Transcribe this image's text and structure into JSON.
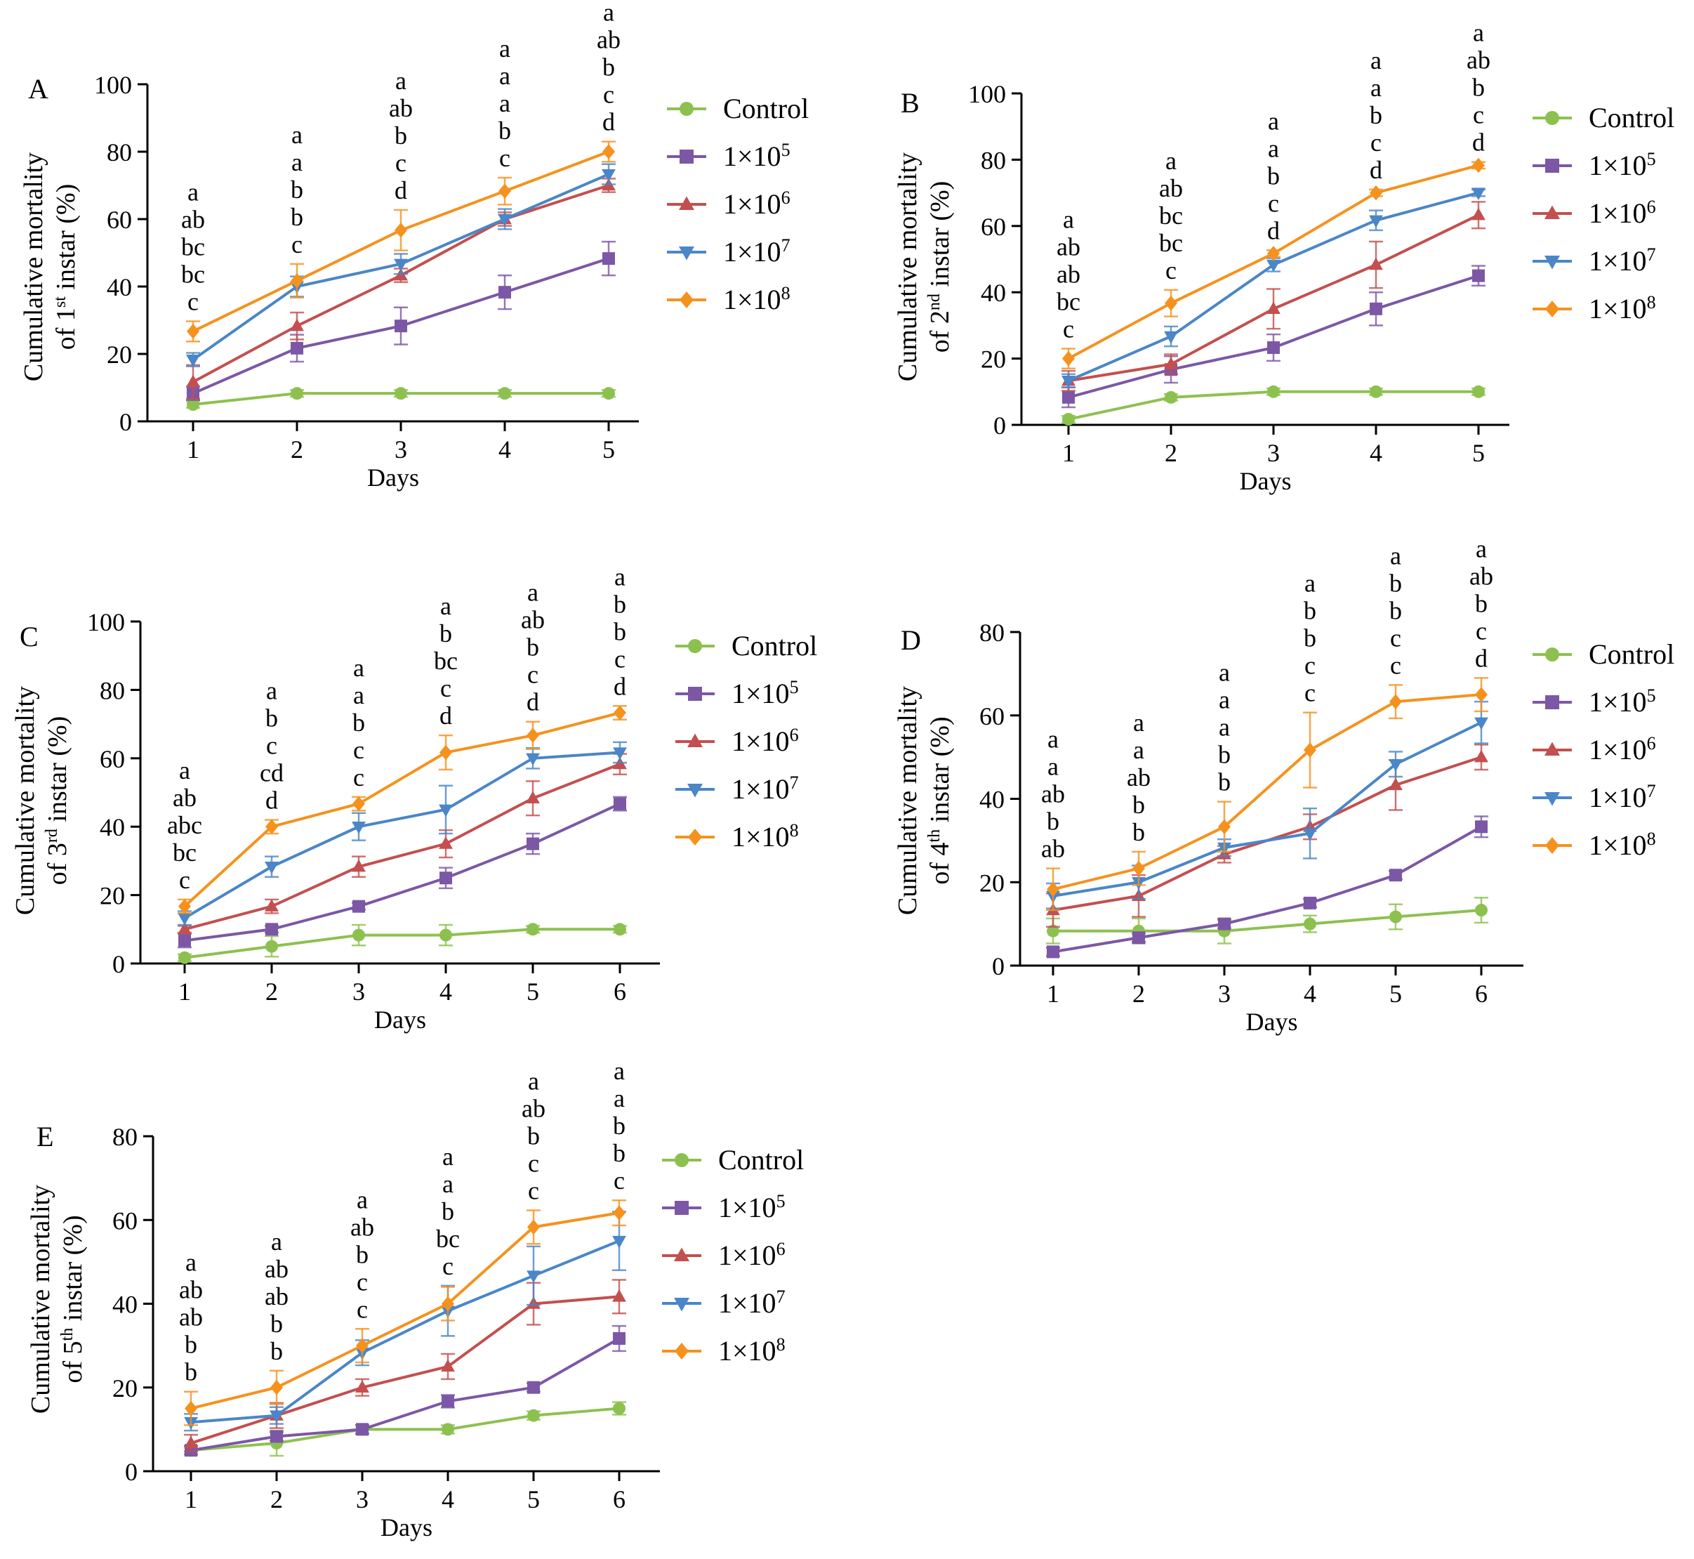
{
  "figure": {
    "x_label": "Days",
    "legend": [
      {
        "name": "Control",
        "sup": "",
        "marker": "circle",
        "color": "#8DC14F"
      },
      {
        "name": "1×10",
        "sup": "5",
        "marker": "square",
        "color": "#7C57A6"
      },
      {
        "name": "1×10",
        "sup": "6",
        "marker": "triangle-up",
        "color": "#C44F4F"
      },
      {
        "name": "1×10",
        "sup": "7",
        "marker": "triangle-down",
        "color": "#4A86C8"
      },
      {
        "name": "1×10",
        "sup": "8",
        "marker": "diamond",
        "color": "#F5921E"
      }
    ]
  },
  "chart_data": [
    {
      "panel": "A",
      "type": "line",
      "title": "",
      "ylabel_pre": "of 1",
      "ylabel_sup": "st",
      "ylabel_post": " instar (%)",
      "ylabel_top": "Cumulative mortality",
      "xlabel": "Days",
      "x": [
        1,
        2,
        3,
        4,
        5
      ],
      "ylim": [
        0,
        100
      ],
      "yticks": [
        0,
        20,
        40,
        60,
        80,
        100
      ],
      "series": [
        {
          "name": "Control",
          "values": [
            5,
            8.3,
            8.3,
            8.3,
            8.3
          ],
          "errors": [
            1,
            1,
            1,
            1,
            1
          ]
        },
        {
          "name": "1×10^5",
          "values": [
            8.3,
            21.7,
            28.3,
            38.3,
            48.3
          ],
          "errors": [
            2,
            4,
            5.5,
            5,
            5
          ]
        },
        {
          "name": "1×10^6",
          "values": [
            11.7,
            28.3,
            43.3,
            60,
            70
          ],
          "errors": [
            5,
            4,
            2,
            2,
            2
          ]
        },
        {
          "name": "1×10^7",
          "values": [
            18.3,
            40,
            46.7,
            60,
            73.3
          ],
          "errors": [
            2,
            3,
            3,
            3,
            3
          ]
        },
        {
          "name": "1×10^8",
          "values": [
            26.7,
            41.7,
            56.7,
            68.3,
            80
          ],
          "errors": [
            3,
            5,
            6,
            4,
            3
          ]
        }
      ],
      "annotations": [
        [
          "a",
          "ab",
          "bc",
          "bc",
          "c"
        ],
        [
          "a",
          "a",
          "b",
          "b",
          "c"
        ],
        [
          "a",
          "ab",
          "b",
          "c",
          "d"
        ],
        [
          "a",
          "a",
          "a",
          "b",
          "c"
        ],
        [
          "a",
          "ab",
          "b",
          "c",
          "d"
        ]
      ]
    },
    {
      "panel": "B",
      "type": "line",
      "title": "",
      "ylabel_pre": "of 2",
      "ylabel_sup": "nd",
      "ylabel_post": " instar (%)",
      "ylabel_top": "Cumulative mortality",
      "xlabel": "Days",
      "x": [
        1,
        2,
        3,
        4,
        5
      ],
      "ylim": [
        0,
        100
      ],
      "yticks": [
        0,
        20,
        40,
        60,
        80,
        100
      ],
      "series": [
        {
          "name": "Control",
          "values": [
            1.7,
            8.3,
            10,
            10,
            10
          ],
          "errors": [
            1,
            1,
            1,
            1,
            1
          ]
        },
        {
          "name": "1×10^5",
          "values": [
            8.3,
            16.7,
            23.3,
            35,
            45
          ],
          "errors": [
            3,
            4,
            4,
            5,
            3
          ]
        },
        {
          "name": "1×10^6",
          "values": [
            13.3,
            18.3,
            35,
            48.3,
            63.3
          ],
          "errors": [
            3,
            3,
            6,
            7,
            4
          ]
        },
        {
          "name": "1×10^7",
          "values": [
            13.3,
            26.7,
            48.3,
            61.7,
            70
          ],
          "errors": [
            2,
            3,
            2,
            3,
            1
          ]
        },
        {
          "name": "1×10^8",
          "values": [
            20,
            36.7,
            51.7,
            70,
            78.3
          ],
          "errors": [
            3,
            4,
            1,
            1,
            1
          ]
        }
      ],
      "annotations": [
        [
          "a",
          "ab",
          "ab",
          "bc",
          "c"
        ],
        [
          "a",
          "ab",
          "bc",
          "bc",
          "c"
        ],
        [
          "a",
          "a",
          "b",
          "c",
          "d"
        ],
        [
          "a",
          "a",
          "b",
          "c",
          "d"
        ],
        [
          "a",
          "ab",
          "b",
          "c",
          "d"
        ]
      ]
    },
    {
      "panel": "C",
      "type": "line",
      "title": "",
      "ylabel_pre": "of 3",
      "ylabel_sup": "rd",
      "ylabel_post": " instar (%)",
      "ylabel_top": "Cumulative mortality",
      "xlabel": "Days",
      "x": [
        1,
        2,
        3,
        4,
        5,
        6
      ],
      "ylim": [
        0,
        100
      ],
      "yticks": [
        0,
        20,
        40,
        60,
        80,
        100
      ],
      "series": [
        {
          "name": "Control",
          "values": [
            1.7,
            5,
            8.3,
            8.3,
            10,
            10
          ],
          "errors": [
            1,
            3,
            3,
            3,
            1,
            1
          ]
        },
        {
          "name": "1×10^5",
          "values": [
            6.7,
            10,
            16.7,
            25,
            35,
            46.7
          ],
          "errors": [
            2,
            1,
            1,
            3,
            3,
            2
          ]
        },
        {
          "name": "1×10^6",
          "values": [
            10,
            16.7,
            28.3,
            35,
            48.3,
            58.3
          ],
          "errors": [
            1,
            2,
            3,
            4,
            5,
            3
          ]
        },
        {
          "name": "1×10^7",
          "values": [
            13.3,
            28.3,
            40,
            45,
            60,
            61.7
          ],
          "errors": [
            2,
            3,
            4,
            7,
            3,
            3
          ]
        },
        {
          "name": "1×10^8",
          "values": [
            16.7,
            40,
            46.7,
            61.7,
            66.7,
            73.3
          ],
          "errors": [
            2,
            2,
            2,
            5,
            4,
            2
          ]
        }
      ],
      "annotations": [
        [
          "a",
          "ab",
          "abc",
          "bc",
          "c"
        ],
        [
          "a",
          "b",
          "c",
          "cd",
          "d"
        ],
        [
          "a",
          "a",
          "b",
          "c",
          "c"
        ],
        [
          "a",
          "b",
          "bc",
          "c",
          "d"
        ],
        [
          "a",
          "ab",
          "b",
          "c",
          "d"
        ],
        [
          "a",
          "b",
          "b",
          "c",
          "d"
        ]
      ]
    },
    {
      "panel": "D",
      "type": "line",
      "title": "",
      "ylabel_pre": "of 4",
      "ylabel_sup": "th",
      "ylabel_post": " instar (%)",
      "ylabel_top": "Cumulative mortality",
      "xlabel": "Days",
      "x": [
        1,
        2,
        3,
        4,
        5,
        6
      ],
      "ylim": [
        0,
        80
      ],
      "yticks": [
        0,
        20,
        40,
        60,
        80
      ],
      "series": [
        {
          "name": "Control",
          "values": [
            8.3,
            8.3,
            8.3,
            10,
            11.7,
            13.3
          ],
          "errors": [
            3,
            3,
            3,
            2,
            3,
            3
          ]
        },
        {
          "name": "1×10^5",
          "values": [
            3.3,
            6.7,
            10,
            15,
            21.7,
            33.3
          ],
          "errors": [
            1,
            1,
            1,
            1,
            1,
            2.5
          ]
        },
        {
          "name": "1×10^6",
          "values": [
            13.3,
            16.7,
            26.7,
            33.3,
            43.3,
            50
          ],
          "errors": [
            4,
            5,
            2,
            3,
            6,
            3
          ]
        },
        {
          "name": "1×10^7",
          "values": [
            16.7,
            20,
            28.3,
            31.7,
            48.3,
            58.3
          ],
          "errors": [
            3,
            4,
            2,
            6,
            3,
            5
          ]
        },
        {
          "name": "1×10^8",
          "values": [
            18.3,
            23.3,
            33.3,
            51.7,
            63.3,
            65
          ],
          "errors": [
            5,
            4,
            6,
            9,
            4,
            4
          ]
        }
      ],
      "annotations": [
        [
          "a",
          "a",
          "ab",
          "b",
          "ab"
        ],
        [
          "a",
          "a",
          "ab",
          "b",
          "b"
        ],
        [
          "a",
          "a",
          "a",
          "b",
          "b"
        ],
        [
          "a",
          "b",
          "b",
          "c",
          "c"
        ],
        [
          "a",
          "b",
          "b",
          "c",
          "c"
        ],
        [
          "a",
          "ab",
          "b",
          "c",
          "d"
        ]
      ]
    },
    {
      "panel": "E",
      "type": "line",
      "title": "",
      "ylabel_pre": "of 5",
      "ylabel_sup": "th",
      "ylabel_post": " instar (%)",
      "ylabel_top": "Cumulative mortality",
      "xlabel": "Days",
      "x": [
        1,
        2,
        3,
        4,
        5,
        6
      ],
      "ylim": [
        0,
        80
      ],
      "yticks": [
        0,
        20,
        40,
        60,
        80
      ],
      "series": [
        {
          "name": "Control",
          "values": [
            5,
            6.7,
            10,
            10,
            13.3,
            15
          ],
          "errors": [
            1,
            3,
            1,
            1,
            1,
            1.5
          ]
        },
        {
          "name": "1×10^5",
          "values": [
            5,
            8.3,
            10,
            16.7,
            20,
            31.7
          ],
          "errors": [
            1,
            1,
            1,
            1.5,
            1,
            3
          ]
        },
        {
          "name": "1×10^6",
          "values": [
            6.7,
            13.3,
            20,
            25,
            40,
            41.7
          ],
          "errors": [
            2,
            3,
            2,
            3,
            5,
            4
          ]
        },
        {
          "name": "1×10^7",
          "values": [
            11.7,
            13.3,
            28.3,
            38.3,
            46.7,
            55
          ],
          "errors": [
            2,
            2,
            3,
            6,
            7,
            7
          ]
        },
        {
          "name": "1×10^8",
          "values": [
            15,
            20,
            30,
            40,
            58.3,
            61.7
          ],
          "errors": [
            4,
            4,
            4,
            4,
            4,
            3
          ]
        }
      ],
      "annotations": [
        [
          "a",
          "ab",
          "ab",
          "b",
          "b"
        ],
        [
          "a",
          "ab",
          "ab",
          "b",
          "b"
        ],
        [
          "a",
          "ab",
          "b",
          "c",
          "c"
        ],
        [
          "a",
          "a",
          "b",
          "bc",
          "c"
        ],
        [
          "a",
          "ab",
          "b",
          "c",
          "c"
        ],
        [
          "a",
          "a",
          "b",
          "b",
          "c"
        ]
      ]
    }
  ]
}
